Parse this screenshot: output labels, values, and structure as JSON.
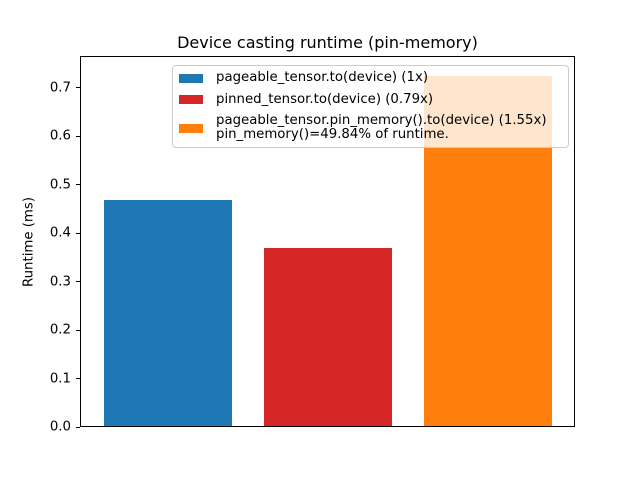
{
  "chart_data": {
    "type": "bar",
    "title": "Device casting runtime (pin-memory)",
    "xlabel": "",
    "ylabel": "Runtime (ms)",
    "yticks": [
      "0.0",
      "0.1",
      "0.2",
      "0.3",
      "0.4",
      "0.5",
      "0.6",
      "0.7"
    ],
    "ylim": [
      0,
      0.766
    ],
    "xlim": [
      -0.543,
      2.539
    ],
    "bar_width": 0.8,
    "grid": false,
    "x_tick_labels": [],
    "bars": [
      {
        "x": 0,
        "value": 0.469,
        "color": "#1f77b4",
        "label": "pageable_tensor.to(device) (1x)"
      },
      {
        "x": 1,
        "value": 0.37,
        "color": "#d62728",
        "label": "pinned_tensor.to(device) (0.79x)"
      },
      {
        "x": 2,
        "value": 0.727,
        "color": "#ff7f0e",
        "label": "pageable_tensor.pin_memory().to(device) (1.55x)\npin_memory()=49.84% of runtime."
      }
    ],
    "legend": {
      "position": "upper center",
      "frame_color": "#cccccc",
      "background": "rgba(255,255,255,0.8)",
      "entries": [
        {
          "swatch_color": "#1f77b4",
          "label": "pageable_tensor.to(device) (1x)",
          "label2": ""
        },
        {
          "swatch_color": "#d62728",
          "label": "pinned_tensor.to(device) (0.79x)",
          "label2": ""
        },
        {
          "swatch_color": "#ff7f0e",
          "label": "pageable_tensor.pin_memory().to(device) (1.55x)",
          "label2": "pin_memory()=49.84% of runtime."
        }
      ]
    }
  }
}
